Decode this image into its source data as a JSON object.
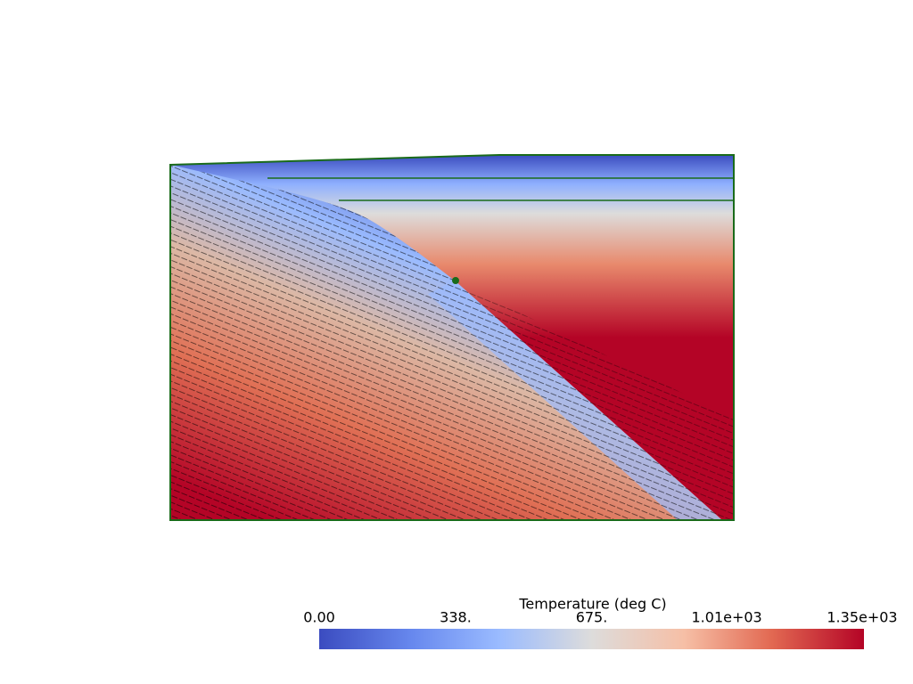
{
  "colorbar": {
    "title": "Temperature (deg C)",
    "range": [
      0,
      1350
    ],
    "ticks": [
      {
        "value": 0,
        "label": "0.00"
      },
      {
        "value": 338,
        "label": "338."
      },
      {
        "value": 675,
        "label": "675."
      },
      {
        "value": 1010,
        "label": "1.01e+03"
      },
      {
        "value": 1350,
        "label": "1.35e+03"
      }
    ]
  }
}
